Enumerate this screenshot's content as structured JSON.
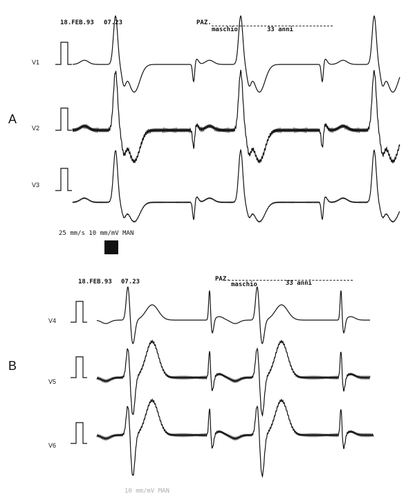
{
  "panels": [
    {
      "label": "A",
      "date": "18.FEB.93",
      "time": "07.23",
      "patient_label": "PAZ.",
      "sex": "maschio",
      "age": "33 anni",
      "leads": [
        "V1",
        "V2",
        "V3"
      ],
      "settings": "25 mm/s  10 mm/mV  MAN"
    },
    {
      "label": "B",
      "date": "18.FEB.93",
      "time": "07.23",
      "patient_label": "PAZ.",
      "sex": "maschio",
      "age": "33 anni",
      "leads": [
        "V4",
        "V5",
        "V6"
      ],
      "settings": "10 mm/mV  MAN"
    }
  ]
}
